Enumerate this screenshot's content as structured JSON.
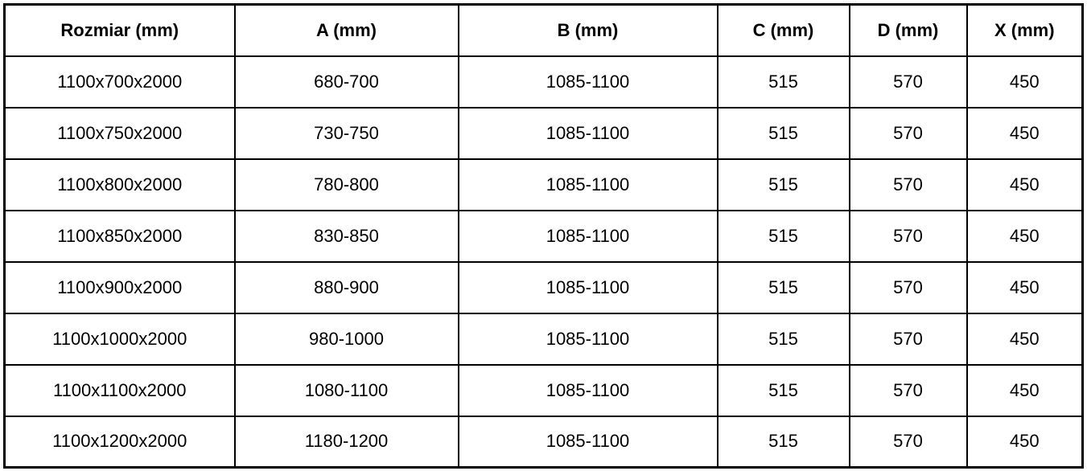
{
  "table": {
    "headers": [
      "Rozmiar (mm)",
      "A (mm)",
      "B (mm)",
      "C (mm)",
      "D (mm)",
      "X (mm)"
    ],
    "rows": [
      [
        "1100x700x2000",
        "680-700",
        "1085-1100",
        "515",
        "570",
        "450"
      ],
      [
        "1100x750x2000",
        "730-750",
        "1085-1100",
        "515",
        "570",
        "450"
      ],
      [
        "1100x800x2000",
        "780-800",
        "1085-1100",
        "515",
        "570",
        "450"
      ],
      [
        "1100x850x2000",
        "830-850",
        "1085-1100",
        "515",
        "570",
        "450"
      ],
      [
        "1100x900x2000",
        "880-900",
        "1085-1100",
        "515",
        "570",
        "450"
      ],
      [
        "1100x1000x2000",
        "980-1000",
        "1085-1100",
        "515",
        "570",
        "450"
      ],
      [
        "1100x1100x2000",
        "1080-1100",
        "1085-1100",
        "515",
        "570",
        "450"
      ],
      [
        "1100x1200x2000",
        "1180-1200",
        "1085-1100",
        "515",
        "570",
        "450"
      ]
    ],
    "colors": {
      "border": "#000000",
      "text": "#000000",
      "background": "#ffffff"
    }
  }
}
